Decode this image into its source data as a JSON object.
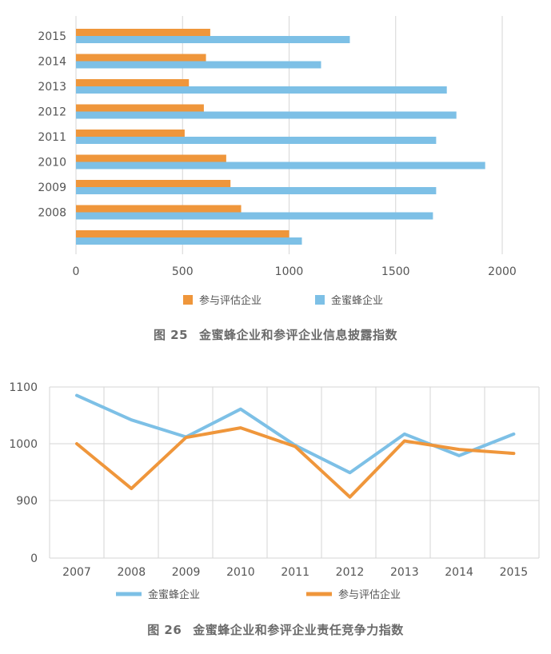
{
  "colors": {
    "orange": "#EF963B",
    "blue": "#7DC0E6",
    "grid": "#D6D6D6",
    "axis_text": "#555555"
  },
  "chart_data": [
    {
      "type": "bar",
      "orientation": "horizontal",
      "categories": [
        "",
        "2008",
        "2009",
        "2010",
        "2011",
        "2012",
        "2013",
        "2014",
        "2015"
      ],
      "series": [
        {
          "name": "参与评估企业",
          "color": "#EF963B",
          "values": [
            1000,
            775,
            725,
            705,
            510,
            600,
            530,
            610,
            630
          ]
        },
        {
          "name": "金蜜蜂企业",
          "color": "#7DC0E6",
          "values": [
            1060,
            1675,
            1690,
            1920,
            1690,
            1785,
            1740,
            1150,
            1285
          ]
        }
      ],
      "xlim": [
        0,
        2000
      ],
      "xticks": [
        0,
        500,
        1000,
        1500,
        2000
      ],
      "grid": true,
      "legend": "bottom-center",
      "caption_label": "图 25",
      "caption_text": "金蜜蜂企业和参评企业信息披露指数"
    },
    {
      "type": "line",
      "x": [
        "2007",
        "2008",
        "2009",
        "2010",
        "2011",
        "2012",
        "2013",
        "2014",
        "2015"
      ],
      "series": [
        {
          "name": "金蜜蜂企业",
          "color": "#7DC0E6",
          "values": [
            1085,
            1042,
            1012,
            1061,
            997,
            949,
            1017,
            979,
            1017
          ]
        },
        {
          "name": "参与评估企业",
          "color": "#EF963B",
          "values": [
            1000,
            921,
            1011,
            1028,
            995,
            906,
            1005,
            990,
            983
          ]
        }
      ],
      "yticks": [
        1100,
        1000,
        900,
        0
      ],
      "grid": true,
      "legend": "bottom-center",
      "caption_label": "图 26",
      "caption_text": "金蜜蜂企业和参评企业责任竞争力指数"
    }
  ]
}
